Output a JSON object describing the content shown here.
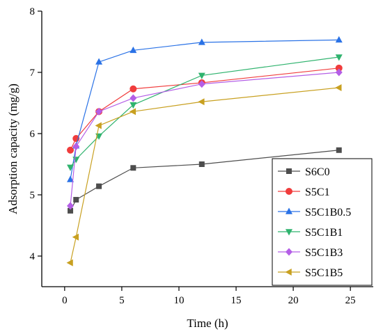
{
  "chart_data": {
    "type": "line",
    "xlabel": "Time (h)",
    "ylabel": "Adsorption capacity (mg/g)",
    "xlim": [
      -2,
      27
    ],
    "ylim": [
      3.5,
      8
    ],
    "xticks": [
      0,
      5,
      10,
      15,
      20,
      25
    ],
    "yticks": [
      4,
      5,
      6,
      7,
      8
    ],
    "legend_position": "bottom-right",
    "x": [
      0.5,
      1,
      3,
      6,
      12,
      24
    ],
    "series": [
      {
        "name": "S6C0",
        "color": "#4d4d4d",
        "marker": "square",
        "values": [
          4.74,
          4.92,
          5.14,
          5.44,
          5.5,
          5.73
        ]
      },
      {
        "name": "S5C1",
        "color": "#f03c3c",
        "marker": "circle",
        "values": [
          5.73,
          5.92,
          6.36,
          6.73,
          6.83,
          7.07
        ]
      },
      {
        "name": "S5C1B0.5",
        "color": "#2a72e6",
        "marker": "triangle-up",
        "values": [
          5.25,
          5.8,
          7.17,
          7.36,
          7.49,
          7.53
        ]
      },
      {
        "name": "S5C1B1",
        "color": "#2fb36e",
        "marker": "triangle-down",
        "values": [
          5.45,
          5.58,
          5.96,
          6.47,
          6.95,
          7.25
        ]
      },
      {
        "name": "S5C1B3",
        "color": "#b45ee6",
        "marker": "diamond",
        "values": [
          4.82,
          5.79,
          6.36,
          6.58,
          6.81,
          7.0
        ]
      },
      {
        "name": "S5C1B5",
        "color": "#c8a020",
        "marker": "triangle-left",
        "values": [
          3.89,
          4.31,
          6.13,
          6.36,
          6.52,
          6.75
        ]
      }
    ]
  }
}
